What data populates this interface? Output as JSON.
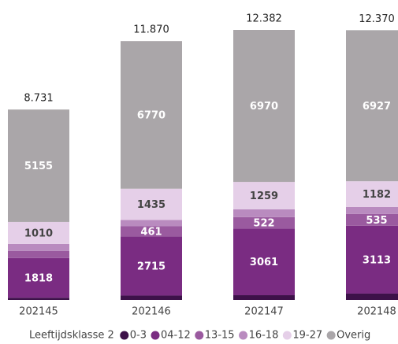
{
  "chart_data": {
    "type": "stacked_bar",
    "categories": [
      "202145",
      "202146",
      "202147",
      "202148"
    ],
    "series": [
      {
        "name": "0-3",
        "color": "#3d1149",
        "values": [
          100,
          200,
          216,
          290
        ]
      },
      {
        "name": "04-12",
        "color": "#7a2c82",
        "values": [
          1818,
          2715,
          3061,
          3113
        ]
      },
      {
        "name": "13-15",
        "color": "#9a5a9f",
        "values": [
          330,
          461,
          522,
          535
        ]
      },
      {
        "name": "16-18",
        "color": "#b98bbf",
        "values": [
          318,
          289,
          354,
          323
        ]
      },
      {
        "name": "19-27",
        "color": "#e5cfe8",
        "values": [
          1010,
          1435,
          1259,
          1182
        ]
      },
      {
        "name": "Overig",
        "color": "#aaa6a9",
        "values": [
          5155,
          6770,
          6970,
          6927
        ]
      }
    ],
    "totals": {
      "values": [
        8731,
        11870,
        12382,
        12370
      ],
      "value_labels": [
        "8.731",
        "11.870",
        "12.382",
        "12.370"
      ]
    },
    "legend_title": "Leeftijdsklasse 2",
    "legend": "bottom"
  }
}
